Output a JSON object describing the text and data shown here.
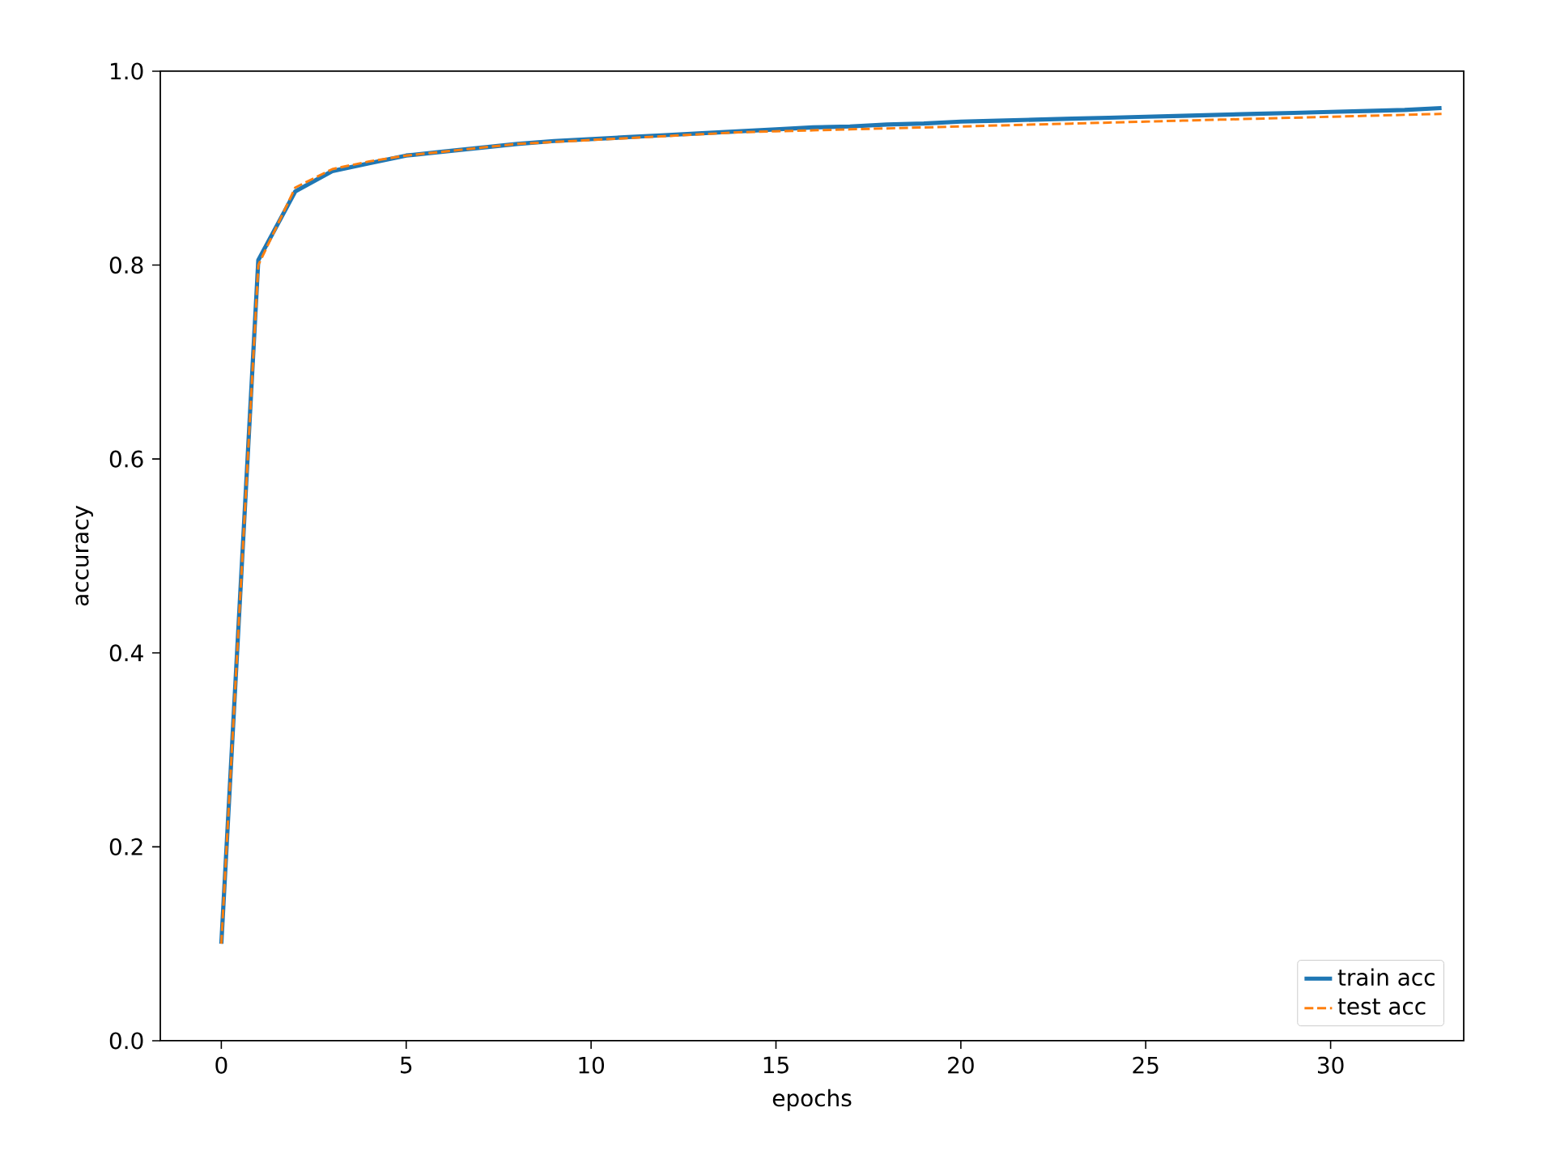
{
  "chart_data": {
    "type": "line",
    "xlabel": "epochs",
    "ylabel": "accuracy",
    "x": [
      0,
      1,
      2,
      3,
      4,
      5,
      6,
      7,
      8,
      9,
      10,
      11,
      12,
      13,
      14,
      15,
      16,
      17,
      18,
      19,
      20,
      21,
      22,
      23,
      24,
      25,
      26,
      27,
      28,
      29,
      30,
      31,
      32,
      33
    ],
    "series": [
      {
        "name": "train acc",
        "color": "#1f77b4",
        "line_style": "solid",
        "values": [
          0.1,
          0.805,
          0.876,
          0.897,
          0.905,
          0.913,
          0.917,
          0.921,
          0.925,
          0.928,
          0.93,
          0.932,
          0.934,
          0.936,
          0.938,
          0.94,
          0.942,
          0.943,
          0.945,
          0.946,
          0.948,
          0.949,
          0.95,
          0.951,
          0.952,
          0.953,
          0.954,
          0.955,
          0.956,
          0.957,
          0.958,
          0.959,
          0.96,
          0.962
        ]
      },
      {
        "name": "test acc",
        "color": "#ff7f0e",
        "line_style": "dashed",
        "values": [
          0.1,
          0.8,
          0.88,
          0.899,
          0.907,
          0.913,
          0.917,
          0.921,
          0.925,
          0.927,
          0.929,
          0.931,
          0.933,
          0.935,
          0.937,
          0.938,
          0.939,
          0.94,
          0.941,
          0.942,
          0.943,
          0.944,
          0.945,
          0.946,
          0.947,
          0.948,
          0.949,
          0.95,
          0.951,
          0.952,
          0.953,
          0.954,
          0.955,
          0.956
        ]
      }
    ],
    "xlim": [
      -1.65,
      33.6
    ],
    "ylim": [
      0,
      1.0
    ],
    "xticks": [
      0,
      5,
      10,
      15,
      20,
      25,
      30
    ],
    "yticks": [
      {
        "value": 0,
        "label": "0.0"
      },
      {
        "value": 0.2,
        "label": "0.2"
      },
      {
        "value": 0.4,
        "label": "0.4"
      },
      {
        "value": 0.6,
        "label": "0.6"
      },
      {
        "value": 0.8,
        "label": "0.8"
      },
      {
        "value": 1.0,
        "label": "1.0"
      }
    ],
    "grid": false,
    "legend": "bottom right",
    "marker": "none"
  }
}
